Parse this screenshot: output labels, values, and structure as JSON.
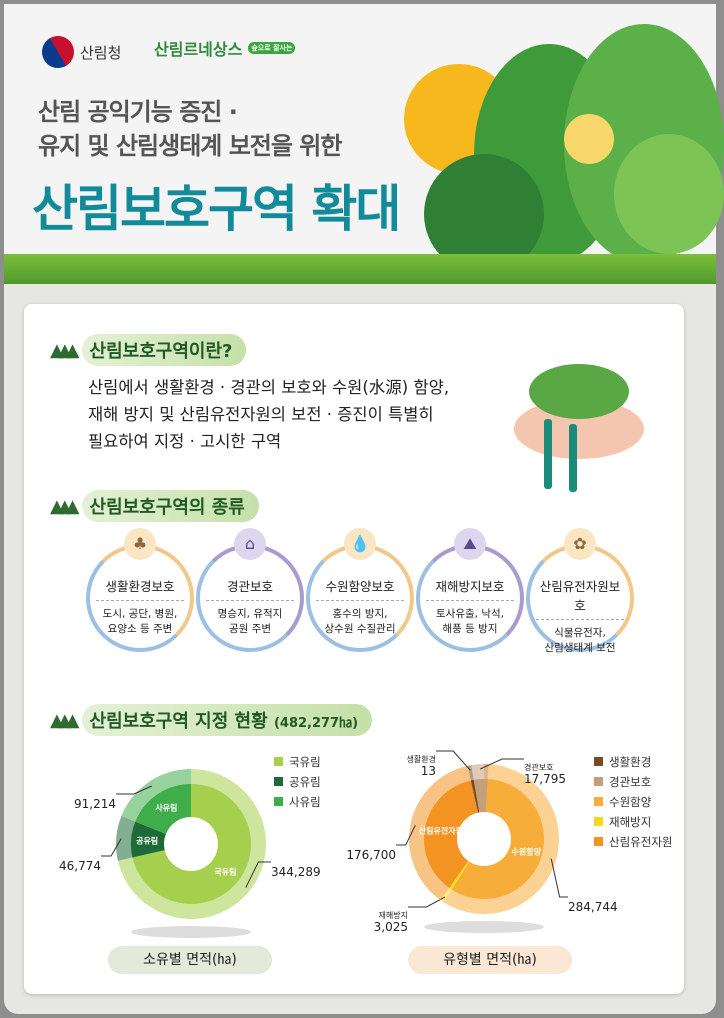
{
  "header": {
    "org": "산림청",
    "campaign": "산림르네상스",
    "campaign_badge": "숲으로 잘사는",
    "subtitle_line1": "산림 공익기능 증진 ·",
    "subtitle_line2": "유지 및 산림생태계 보전을 위한",
    "title": "산림보호구역 확대"
  },
  "section1": {
    "heading": "산림보호구역이란?",
    "lines": [
      "산림에서 생활환경 · 경관의 보호와 수원(水源) 함양,",
      "재해 방지 및 산림유전자원의 보전 · 증진이 특별히",
      "필요하여 지정 · 고시한 구역"
    ]
  },
  "section2": {
    "heading": "산림보호구역의 종류",
    "types": [
      {
        "name": "생활환경보호",
        "desc": [
          "도시, 공단, 병원,",
          "요양소 등 주변"
        ],
        "icon": "forest-icon"
      },
      {
        "name": "경관보호",
        "desc": [
          "명승지, 유적지",
          "공원 주변"
        ],
        "icon": "pavilion-icon"
      },
      {
        "name": "수원함양보호",
        "desc": [
          "홍수의 방지,",
          "상수원 수질관리"
        ],
        "icon": "water-drop-icon"
      },
      {
        "name": "재해방지보호",
        "desc": [
          "토사유출, 낙석,",
          "해풍 등 방지"
        ],
        "icon": "landslide-icon"
      },
      {
        "name": "산림유전자원보호",
        "desc": [
          "식물유전자,",
          "산림생태계 보전"
        ],
        "icon": "sprout-hand-icon"
      }
    ]
  },
  "section3": {
    "heading": "산림보호구역 지정 현황",
    "total": "(482,277㏊)"
  },
  "chart_data": [
    {
      "type": "pie",
      "title": "소유별 면적(㏊)",
      "categories": [
        "국유림",
        "공유림",
        "사유림"
      ],
      "values": [
        344289,
        46774,
        91214
      ],
      "labels": [
        "344,289",
        "46,774",
        "91,214"
      ],
      "colors": [
        "#a6cf4e",
        "#1f6b38",
        "#3fae4a"
      ],
      "legend": "top-right"
    },
    {
      "type": "pie",
      "title": "유형별 면적(㏊)",
      "categories": [
        "생활환경",
        "경관보호",
        "수원함양",
        "재해방지",
        "산림유전자원"
      ],
      "values": [
        13,
        17795,
        284744,
        3025,
        176700
      ],
      "labels": [
        "13",
        "17,795",
        "284,744",
        "3,025",
        "176,700"
      ],
      "colors": [
        "#7a4a24",
        "#c4a07a",
        "#f7ad3a",
        "#f5d81e",
        "#f29322"
      ],
      "legend": "top-right"
    }
  ]
}
